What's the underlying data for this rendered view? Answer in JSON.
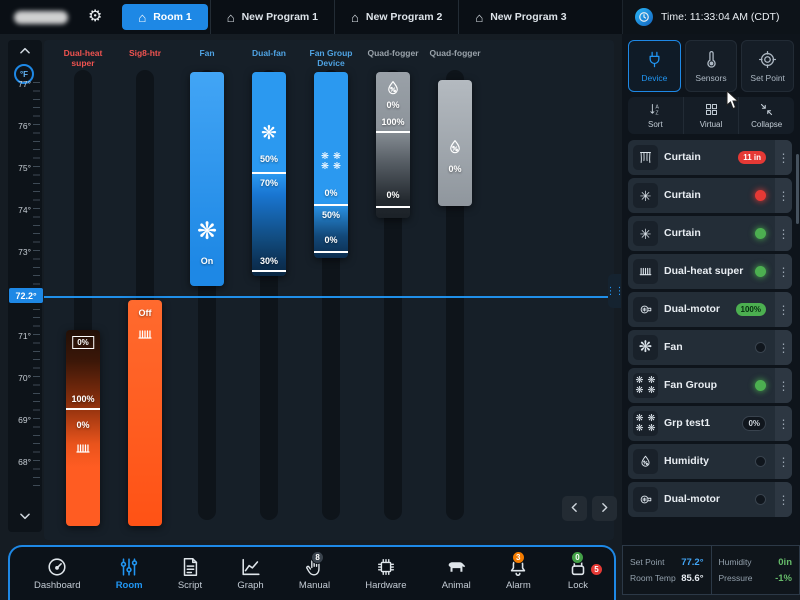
{
  "header": {
    "time": "Time: 11:33:04 AM (CDT)",
    "tabs": [
      {
        "label": "Room 1"
      },
      {
        "label": "New Program 1"
      },
      {
        "label": "New Program 2"
      },
      {
        "label": "New Program 3"
      }
    ]
  },
  "rail": {
    "unit": "°F",
    "current": "72.2°",
    "ticks": [
      "77°",
      "76°",
      "75°",
      "74°",
      "73°",
      "72",
      "71°",
      "70°",
      "69°",
      "68°"
    ]
  },
  "chart": {
    "columns": [
      {
        "label": "Dual-heat super",
        "top_value": "0%",
        "divider": "100%",
        "lower_value": "0%"
      },
      {
        "label": "Sig8-htr",
        "state": "Off"
      },
      {
        "label": "Fan",
        "state": "On"
      },
      {
        "label": "Dual-fan",
        "value": "50%",
        "divider": "70%",
        "bottom_value": "30%"
      },
      {
        "label": "Fan Group Device",
        "value": "0%",
        "divider": "50%",
        "bottom_value": "0%"
      },
      {
        "label": "Quad-fogger",
        "value": "0%",
        "divider": "100%",
        "bottom_value": "0%"
      },
      {
        "label": "Quad-fogger",
        "value": "0%"
      }
    ]
  },
  "panel": {
    "tabs": [
      {
        "label": "Device",
        "icon": "plug"
      },
      {
        "label": "Sensors",
        "icon": "thermometer"
      },
      {
        "label": "Set Point",
        "icon": "target"
      }
    ],
    "actions": [
      {
        "label": "Sort",
        "icon": "sort"
      },
      {
        "label": "Virtual",
        "icon": "virtual"
      },
      {
        "label": "Collapse",
        "icon": "collapse"
      }
    ],
    "devices": [
      {
        "name": "Curtain",
        "icon": "curtain",
        "status": "red-pill",
        "badge": "11 in"
      },
      {
        "name": "Curtain",
        "icon": "winch",
        "status": "red-dot",
        "badge": ""
      },
      {
        "name": "Curtain",
        "icon": "winch",
        "status": "green-dot",
        "badge": ""
      },
      {
        "name": "Dual-heat super",
        "icon": "heater",
        "status": "green-dot",
        "badge": ""
      },
      {
        "name": "Dual-motor",
        "icon": "motor",
        "status": "green-pill",
        "badge": "100%"
      },
      {
        "name": "Fan",
        "icon": "fan",
        "status": "dark-dot",
        "badge": ""
      },
      {
        "name": "Fan Group",
        "icon": "fan-group",
        "status": "green-dot",
        "badge": ""
      },
      {
        "name": "Grp test1",
        "icon": "fan-group",
        "status": "dark-pill",
        "badge": "0%"
      },
      {
        "name": "Humidity",
        "icon": "humidity",
        "status": "dark-dot",
        "badge": ""
      },
      {
        "name": "Dual-motor",
        "icon": "motor",
        "status": "dark-dot",
        "badge": ""
      }
    ]
  },
  "footer": {
    "items": [
      {
        "label": "Dashboard",
        "icon": "dashboard"
      },
      {
        "label": "Room",
        "icon": "room"
      },
      {
        "label": "Script",
        "icon": "script"
      },
      {
        "label": "Graph",
        "icon": "graph"
      },
      {
        "label": "Manual",
        "icon": "manual",
        "badge1": "8",
        "badge1_color": "dark"
      },
      {
        "label": "Hardware",
        "icon": "hardware"
      },
      {
        "label": "Animal",
        "icon": "animal"
      },
      {
        "label": "Alarm",
        "icon": "alarm",
        "badge1": "3",
        "badge1_color": "orange",
        "badge2": "5",
        "badge2_color": "red"
      },
      {
        "label": "Lock",
        "icon": "lock",
        "badge1": "0",
        "badge1_color": "green"
      }
    ]
  },
  "status": {
    "set_point_label": "Set Point",
    "set_point_value": "77.2°",
    "room_temp_label": "Room Temp",
    "room_temp_value": "85.6°",
    "humidity_label": "Humidity",
    "humidity_value": "0in",
    "pressure_label": "Pressure",
    "pressure_value": "-1%"
  }
}
